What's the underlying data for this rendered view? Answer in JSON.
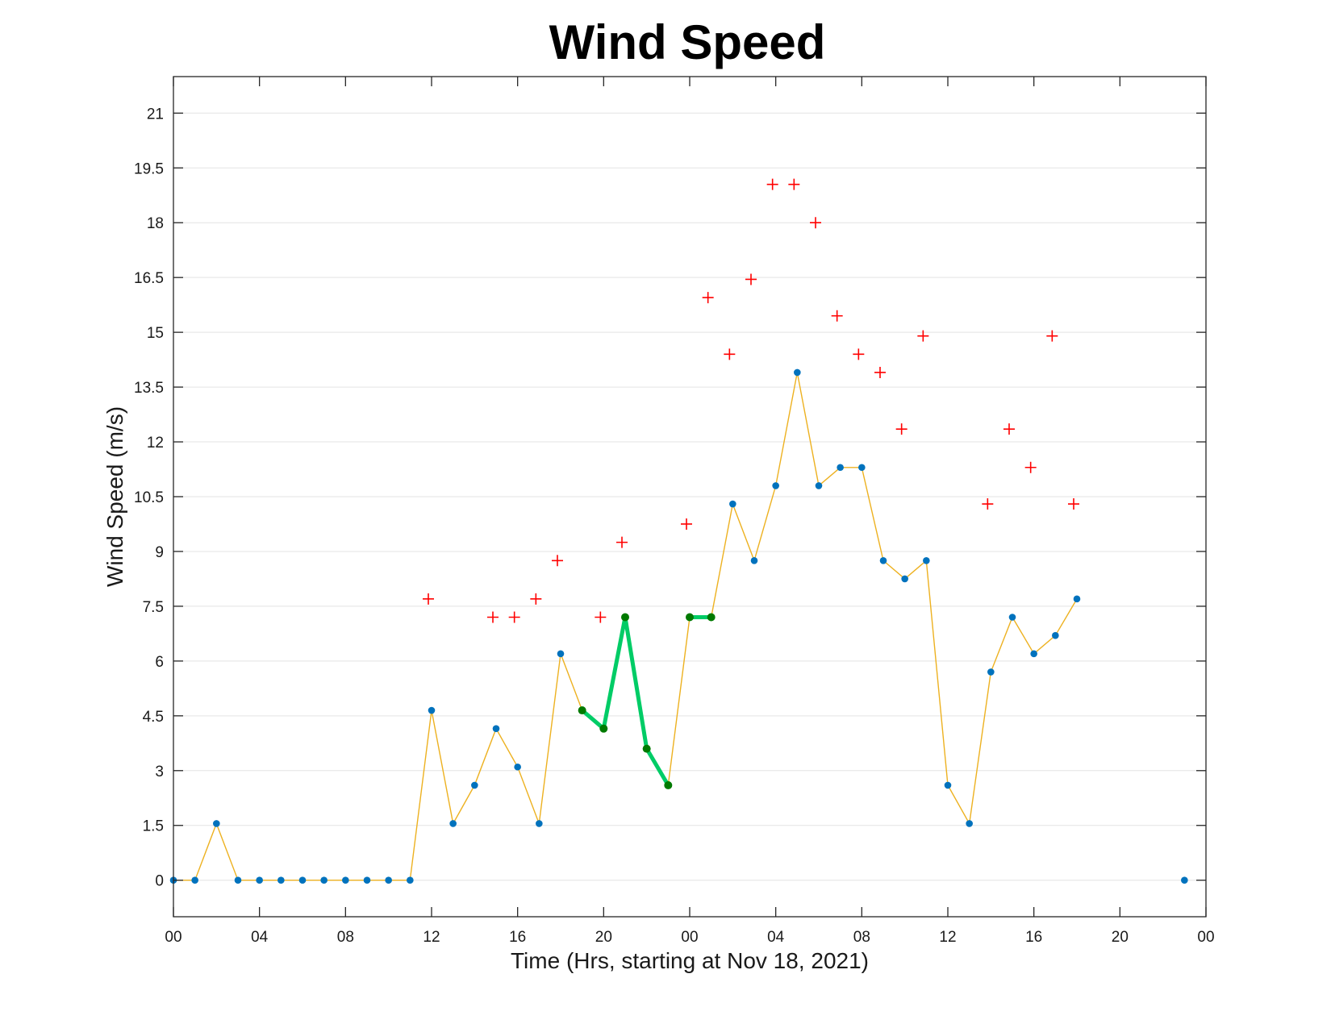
{
  "chart_data": {
    "type": "line",
    "title": "Wind Speed",
    "xlabel": "Time (Hrs, starting at Nov 18, 2021)",
    "ylabel": "Wind Speed (m/s)",
    "xlim": [
      0,
      48
    ],
    "ylim": [
      -1,
      22
    ],
    "grid": "horizontal",
    "x_ticks": [
      0,
      4,
      8,
      12,
      16,
      20,
      24,
      28,
      32,
      36,
      40,
      44,
      48
    ],
    "x_tick_labels": [
      "00",
      "04",
      "08",
      "12",
      "16",
      "20",
      "00",
      "04",
      "08",
      "12",
      "16",
      "20",
      "00"
    ],
    "y_ticks": [
      0,
      1.5,
      3,
      4.5,
      6,
      7.5,
      9,
      10.5,
      12,
      13.5,
      15,
      16.5,
      18,
      19.5,
      21
    ],
    "y_tick_labels": [
      "0",
      "1.5",
      "3",
      "4.5",
      "6",
      "7.5",
      "9",
      "10.5",
      "12",
      "13.5",
      "15",
      "16.5",
      "18",
      "19.5",
      "21"
    ],
    "colors": {
      "line": "#EDB120",
      "points": "#0072BD",
      "highlight_line": "#00CC66",
      "highlight_points": "#007A00",
      "gust": "#FF0000"
    },
    "series": [
      {
        "role": "wind_speed",
        "x": [
          0,
          1,
          2,
          3,
          4,
          5,
          6,
          7,
          8,
          9,
          10,
          11,
          12,
          13,
          14,
          15,
          16,
          17,
          18,
          19,
          20,
          21,
          22,
          23,
          24,
          25,
          26,
          27,
          28,
          29,
          30,
          31,
          32,
          33,
          34,
          35,
          36,
          37,
          38,
          39,
          40,
          41,
          42
        ],
        "y": [
          0,
          0,
          1.55,
          0,
          0,
          0,
          0,
          0,
          0,
          0,
          0,
          0,
          4.65,
          1.55,
          2.6,
          4.15,
          3.1,
          1.55,
          6.2,
          4.65,
          4.15,
          7.2,
          3.6,
          2.6,
          7.2,
          7.2,
          10.3,
          8.75,
          10.8,
          13.9,
          10.8,
          11.3,
          11.3,
          8.75,
          8.25,
          8.75,
          2.6,
          1.55,
          5.7,
          7.2,
          6.2,
          6.7,
          7.7
        ]
      },
      {
        "role": "highlighted_segment_1",
        "x": [
          19,
          20,
          21,
          22,
          23
        ],
        "y": [
          4.65,
          4.15,
          7.2,
          3.6,
          2.6
        ]
      },
      {
        "role": "highlighted_segment_2",
        "x": [
          24,
          25
        ],
        "y": [
          7.2,
          7.2
        ]
      },
      {
        "role": "isolated_point",
        "x": [
          47
        ],
        "y": [
          0
        ]
      },
      {
        "role": "gusts",
        "x": [
          11.85,
          14.85,
          15.85,
          16.85,
          17.85,
          19.85,
          20.85,
          23.85,
          24.85,
          25.85,
          26.85,
          27.85,
          28.85,
          29.85,
          30.85,
          31.85,
          32.85,
          33.85,
          34.85,
          37.85,
          38.85,
          39.85,
          40.85,
          41.85
        ],
        "y": [
          7.7,
          7.2,
          7.2,
          7.7,
          8.75,
          7.2,
          9.25,
          9.75,
          15.95,
          14.4,
          16.45,
          19.05,
          19.05,
          18.0,
          15.45,
          14.4,
          13.9,
          12.35,
          14.9,
          10.3,
          12.35,
          11.3,
          14.9,
          10.3
        ]
      }
    ]
  }
}
